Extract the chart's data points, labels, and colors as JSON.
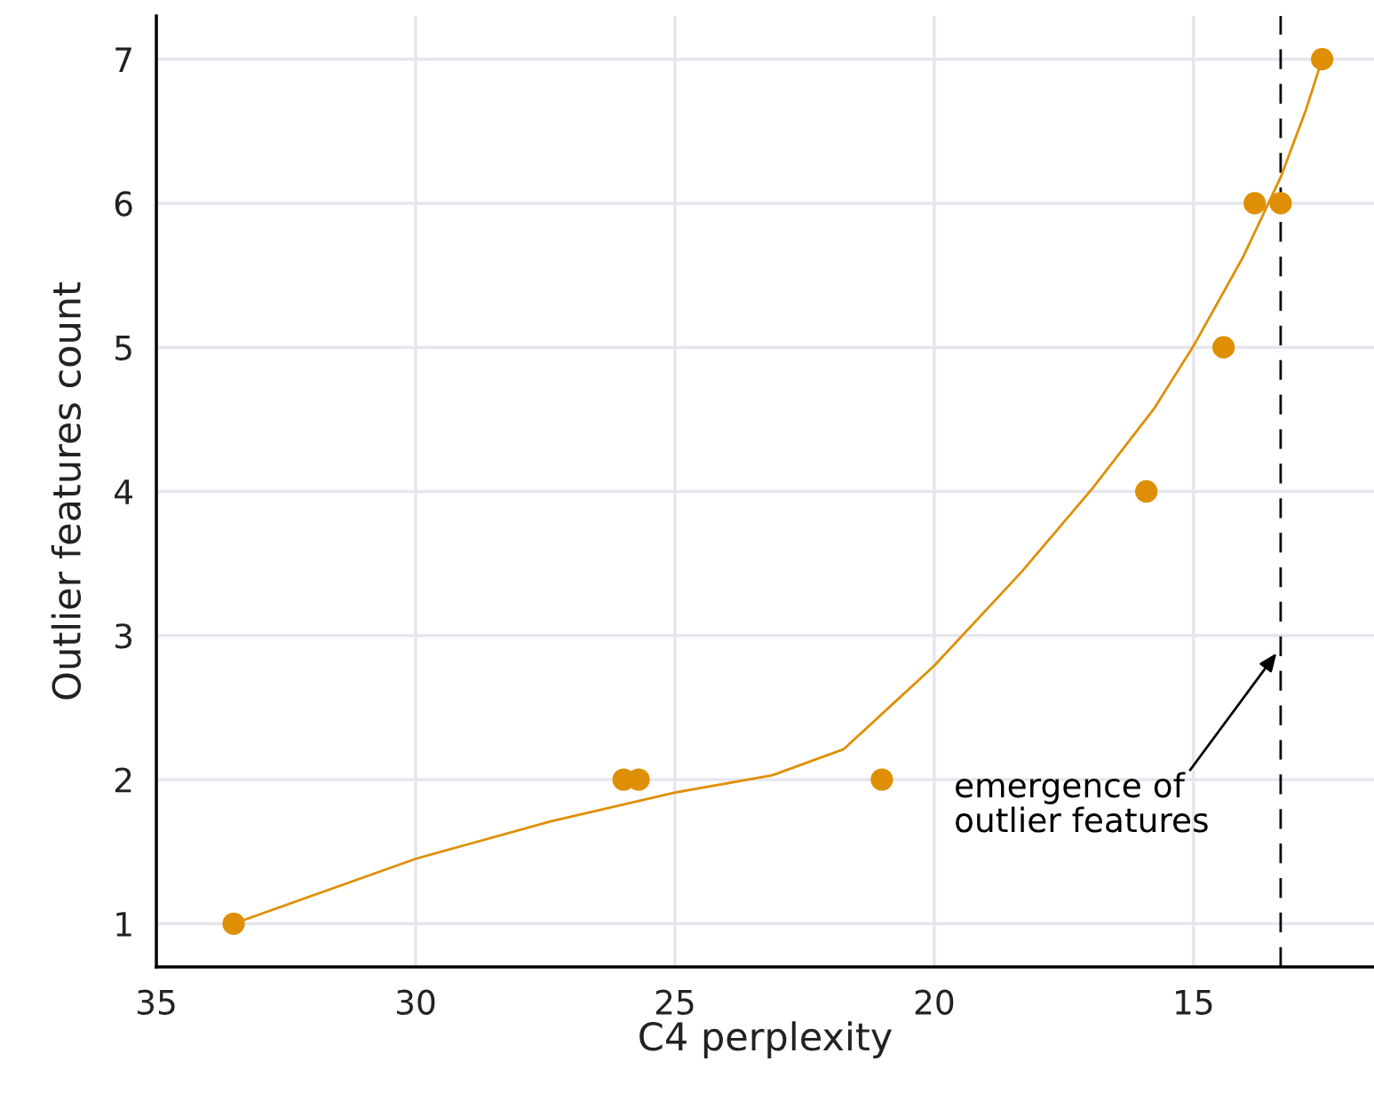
{
  "chart_data": {
    "type": "scatter",
    "xlabel": "C4 perplexity",
    "ylabel": "Outlier features count",
    "xlim": [
      35,
      11.52
    ],
    "ylim": [
      0.7,
      7.3
    ],
    "xticks": [
      35,
      30,
      25,
      20,
      15
    ],
    "yticks": [
      1,
      2,
      3,
      4,
      5,
      6,
      7
    ],
    "grid": true,
    "legend": false,
    "series": [
      {
        "color": "#de8f05",
        "marker": "circle",
        "x": [
          33.51,
          25.99,
          25.7,
          21.01,
          15.91,
          14.42,
          13.82,
          13.32,
          12.52
        ],
        "values": [
          1,
          2,
          2,
          2,
          4,
          5,
          6,
          6,
          7
        ]
      },
      {
        "type": "line",
        "color": "#de8f05",
        "marker": "none",
        "line_style": "solid",
        "x": [
          33.51,
          30,
          27.4,
          25,
          23.12,
          21.75,
          20,
          18.32,
          16.95,
          15.75,
          15,
          14.04,
          13.32,
          12.84,
          12.52
        ],
        "values": [
          1.0,
          1.45,
          1.71,
          1.91,
          2.03,
          2.21,
          2.79,
          3.44,
          4.02,
          4.58,
          5.01,
          5.63,
          6.18,
          6.64,
          7.0
        ]
      }
    ],
    "ref_lines": [
      {
        "axis": "x",
        "value": 13.32,
        "color": "#000000",
        "line_style": "dashed"
      }
    ],
    "annotations": [
      "emergence of\noutlier features"
    ]
  }
}
